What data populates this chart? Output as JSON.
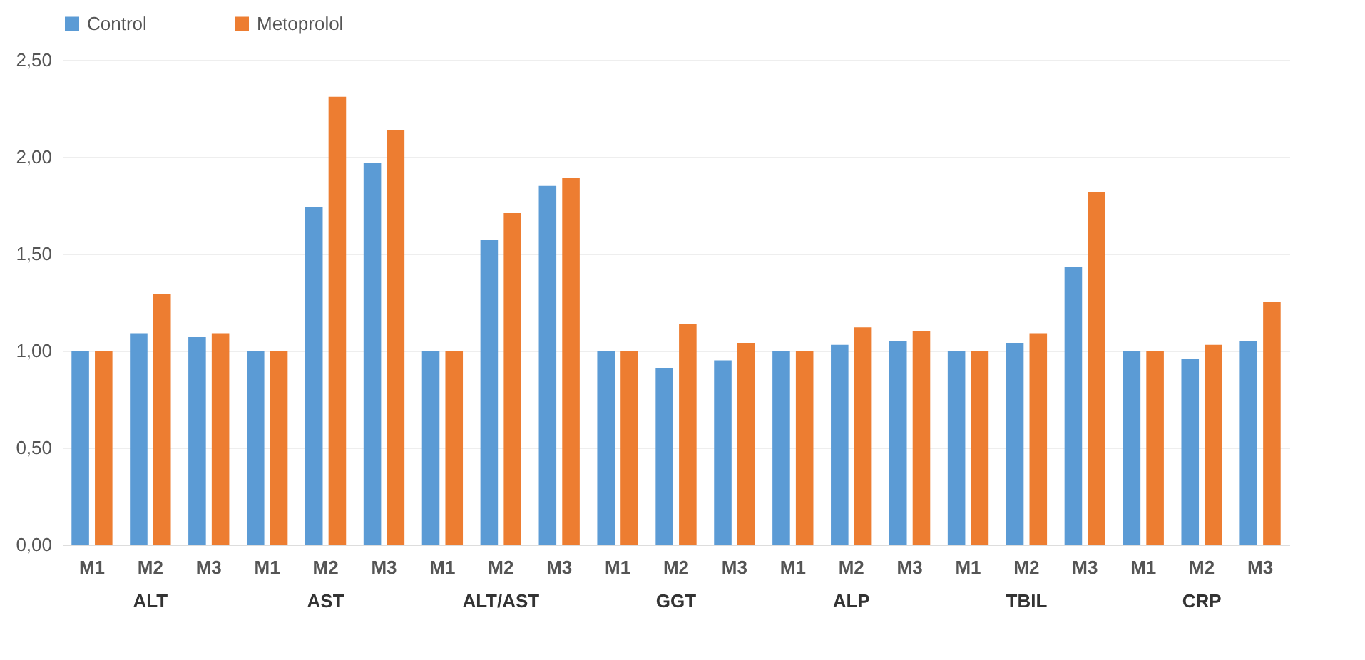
{
  "chart_data": {
    "type": "bar",
    "categories": [
      "M1",
      "M2",
      "M3",
      "M1",
      "M2",
      "M3",
      "M1",
      "M2",
      "M3",
      "M1",
      "M2",
      "M3",
      "M1",
      "M2",
      "M3",
      "M1",
      "M2",
      "M3",
      "M1",
      "M2",
      "M3"
    ],
    "annotations": [
      "ALT",
      "AST",
      "ALT/AST",
      "GGT",
      "ALP",
      "TBIL",
      "CRP"
    ],
    "series": [
      {
        "name": "Control",
        "color": "#5b9bd5",
        "values": [
          1.0,
          1.09,
          1.07,
          1.0,
          1.74,
          1.97,
          1.0,
          1.57,
          1.85,
          1.0,
          0.91,
          0.95,
          1.0,
          1.03,
          1.05,
          1.0,
          1.04,
          1.43,
          1.0,
          0.96,
          1.05
        ]
      },
      {
        "name": "Metoprolol",
        "color": "#ed7d31",
        "values": [
          1.0,
          1.29,
          1.09,
          1.0,
          2.31,
          2.14,
          1.0,
          1.71,
          1.89,
          1.0,
          1.14,
          1.04,
          1.0,
          1.12,
          1.1,
          1.0,
          1.09,
          1.82,
          1.0,
          1.03,
          1.25
        ]
      }
    ],
    "ylim": [
      0,
      2.5
    ],
    "yticks": [
      {
        "value": 0,
        "label": "0,00"
      },
      {
        "value": 0.5,
        "label": "0,50"
      },
      {
        "value": 1,
        "label": "1,00"
      },
      {
        "value": 1.5,
        "label": "1,50"
      },
      {
        "value": 2,
        "label": "2,00"
      },
      {
        "value": 2.5,
        "label": "2,50"
      }
    ],
    "grid": "y",
    "legend": "top"
  }
}
